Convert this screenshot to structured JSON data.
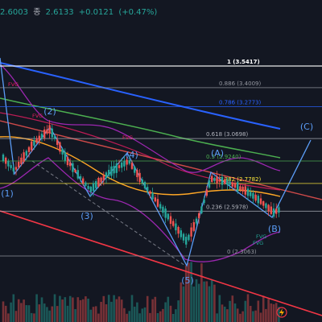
{
  "header": {
    "open": "2.6003",
    "close_label": "종",
    "close": "2.6133",
    "change": "+0.0121",
    "change_pct": "(+0.47%)"
  },
  "chart_data": {
    "type": "candlestick",
    "fib_levels": [
      {
        "ratio": "1",
        "price": 3.5417,
        "label": "1 (3.5417)",
        "color": "#ffffff"
      },
      {
        "ratio": "0.886",
        "price": 3.4009,
        "label": "0.886 (3.4009)",
        "color": "#9598a1"
      },
      {
        "ratio": "0.786",
        "price": 3.2773,
        "label": "0.786 (3.2773)",
        "color": "#2962ff"
      },
      {
        "ratio": "0.618",
        "price": 3.0698,
        "label": "0.618 (3.0698)",
        "color": "#b2b5be"
      },
      {
        "ratio": "0.5",
        "price": 2.924,
        "label": "0.5 (2.9240)",
        "color": "#4caf50"
      },
      {
        "ratio": "0.382",
        "price": 2.7782,
        "label": "0.382 (2.7782)",
        "color": "#ffeb3b"
      },
      {
        "ratio": "0.236",
        "price": 2.5978,
        "label": "0.236 (2.5978)",
        "color": "#b2b5be"
      },
      {
        "ratio": "0",
        "price": 2.3063,
        "label": "0 (2.3063)",
        "color": "#9598a1"
      }
    ],
    "wave_labels": [
      "(1)",
      "(2)",
      "(3)",
      "(4)",
      "(5)",
      "(A)",
      "(B)",
      "(C)"
    ],
    "annotations": [
      "FVG",
      "FVG",
      "FVG",
      "FVG",
      "FVG"
    ],
    "bullish_color": "#26a69a",
    "bearish_color": "#ef5350"
  }
}
